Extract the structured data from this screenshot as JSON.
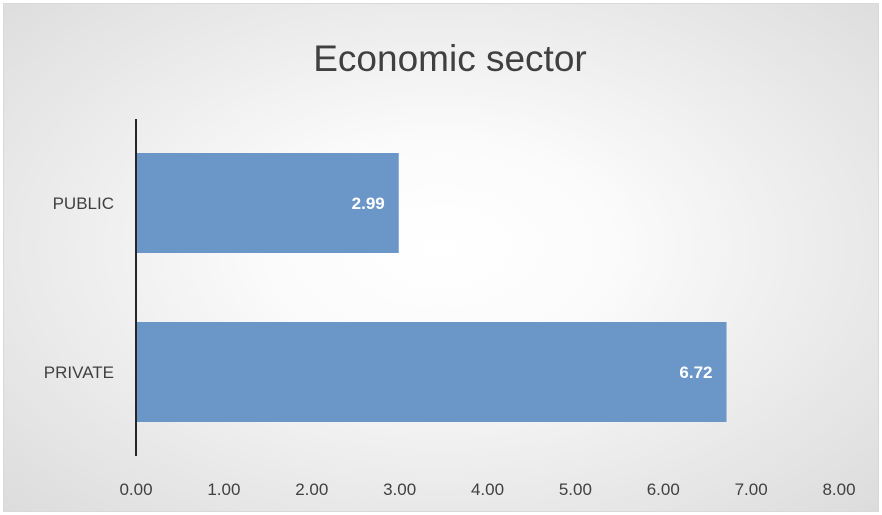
{
  "chart_data": {
    "type": "bar",
    "orientation": "horizontal",
    "title": "Economic sector",
    "categories": [
      "PUBLIC",
      "PRIVATE"
    ],
    "values": [
      2.99,
      6.72
    ],
    "data_labels": [
      "2.99",
      "6.72"
    ],
    "xlim": [
      0,
      8
    ],
    "x_ticks": [
      "0.00",
      "1.00",
      "2.00",
      "3.00",
      "4.00",
      "5.00",
      "6.00",
      "7.00",
      "8.00"
    ],
    "xlabel": "",
    "ylabel": "",
    "grid": false,
    "legend": "none",
    "bar_color": "#6a96c8"
  }
}
